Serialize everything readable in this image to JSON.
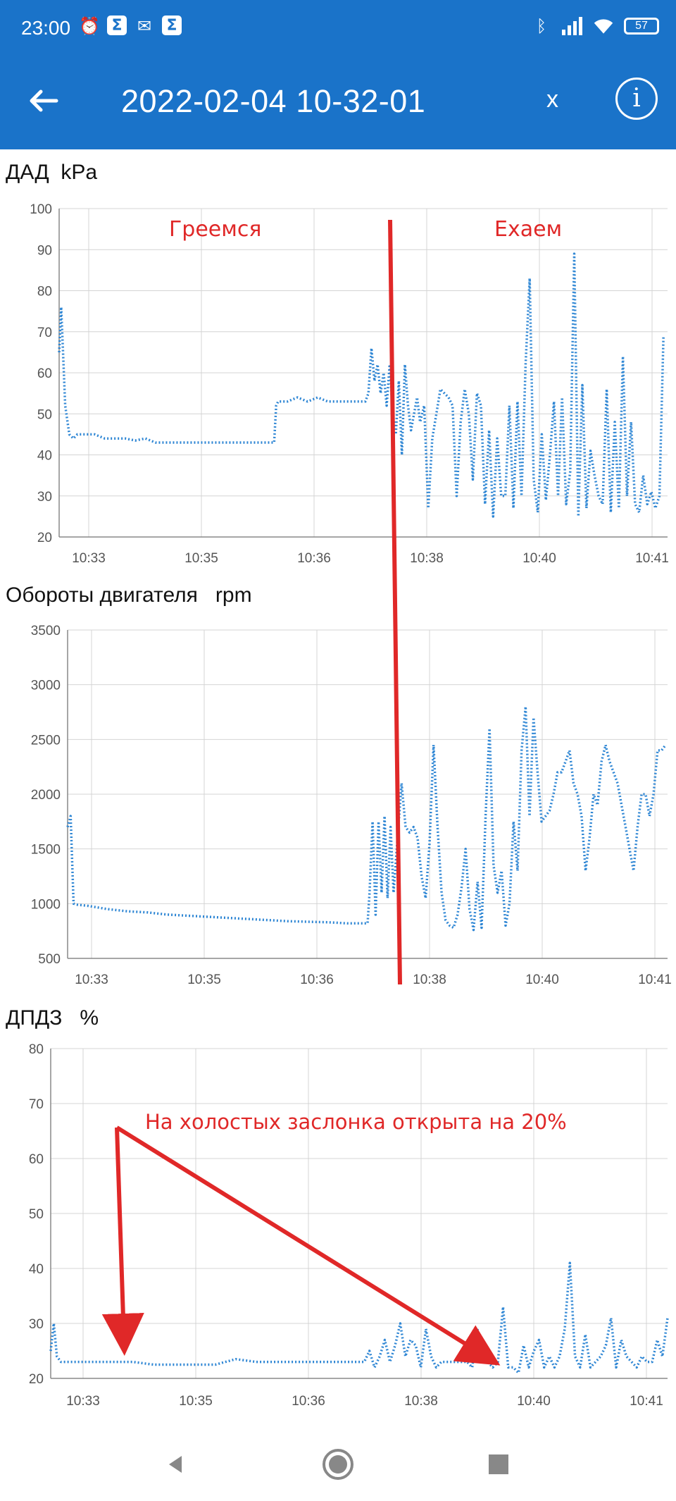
{
  "status_bar": {
    "time": "23:00",
    "left_icons": [
      "alarm-icon",
      "sigma-icon",
      "gmail-icon",
      "sigma-icon"
    ],
    "right_icons": [
      "bluetooth-icon",
      "signal-icon",
      "wifi-icon"
    ],
    "battery": "57"
  },
  "app_bar": {
    "back_icon": "arrow-back-icon",
    "title": "2022-02-04 10-32-01",
    "close_label": "x",
    "info_label": "i"
  },
  "colors": {
    "primary": "#1a73c9",
    "series": "#2e86d4",
    "annotation": "#e02828",
    "grid": "#d4d4d4"
  },
  "annotations": {
    "warming": "Греемся",
    "driving": "Ехаем",
    "idle_note": "На холостых заслонка открыта на 20%"
  },
  "nav_bar": {
    "items": [
      "back-triangle-icon",
      "home-circle-icon",
      "recents-square-icon"
    ]
  },
  "chart_data": [
    {
      "type": "line",
      "title": "ДАД",
      "unit": "kPa",
      "x_tick_labels": [
        "10:33",
        "10:35",
        "10:36",
        "10:38",
        "10:40",
        "10:41"
      ],
      "ylim": [
        20,
        100
      ],
      "yticks": [
        20,
        30,
        40,
        50,
        60,
        70,
        80,
        90,
        100
      ],
      "grid": true,
      "style": "dotted",
      "series": [
        {
          "x": [
            0.0,
            0.02,
            0.06,
            0.1,
            0.14,
            0.18,
            0.25,
            0.35,
            0.45,
            0.55,
            0.65,
            0.75,
            0.85,
            0.95,
            1.05,
            1.15,
            1.25,
            1.35,
            1.45,
            1.55,
            1.65,
            1.75,
            1.85,
            1.95,
            2.05,
            2.12,
            2.14,
            2.16,
            2.25,
            2.35,
            2.45,
            2.55,
            2.65,
            2.75,
            2.85,
            2.95,
            2.99,
            3.02,
            3.05,
            3.08,
            3.11,
            3.14,
            3.17,
            3.2,
            3.23,
            3.26,
            3.29,
            3.32,
            3.35,
            3.38,
            3.41,
            3.44,
            3.47,
            3.5,
            3.53,
            3.56,
            3.6,
            3.64,
            3.68,
            3.72,
            3.76,
            3.8,
            3.84,
            3.88,
            3.92,
            3.96,
            4.0,
            4.04,
            4.08,
            4.12,
            4.16,
            4.2,
            4.24,
            4.28,
            4.32,
            4.36,
            4.4,
            4.44,
            4.48,
            4.52,
            4.56,
            4.6,
            4.64,
            4.68,
            4.72,
            4.76,
            4.8,
            4.84,
            4.88,
            4.92,
            4.96,
            5.0,
            5.04,
            5.08,
            5.12,
            5.16,
            5.2,
            5.24,
            5.28,
            5.32,
            5.36,
            5.4,
            5.44,
            5.48,
            5.52,
            5.56,
            5.6,
            5.64,
            5.68,
            5.72,
            5.76,
            5.8,
            5.84,
            5.88,
            5.92,
            5.96
          ],
          "y": [
            65,
            76,
            52,
            45,
            44,
            45,
            45,
            45,
            44,
            44,
            44,
            43.5,
            44,
            43,
            43,
            43,
            43,
            43,
            43,
            43,
            43,
            43,
            43,
            43,
            43,
            43,
            52,
            53,
            53,
            54,
            53,
            54,
            53,
            53,
            53,
            53,
            53,
            53,
            55,
            66,
            58,
            62,
            55,
            60,
            52,
            62,
            50,
            45,
            58,
            40,
            62,
            52,
            46,
            50,
            54,
            48,
            52,
            27,
            44,
            50,
            56,
            55,
            54,
            52,
            30,
            48,
            56,
            50,
            34,
            55,
            52,
            28,
            46,
            25,
            44,
            30,
            30,
            52,
            27,
            53,
            30,
            62,
            83,
            34,
            26,
            45,
            29,
            40,
            53,
            30,
            54,
            28,
            36,
            89,
            25,
            57,
            27,
            41,
            35,
            30,
            28,
            56,
            26,
            48,
            27,
            64,
            30,
            48,
            28,
            26,
            35,
            28,
            31,
            27,
            30,
            69
          ]
        }
      ]
    },
    {
      "type": "line",
      "title": "Обороты двигателя",
      "unit": "rpm",
      "x_tick_labels": [
        "10:33",
        "10:35",
        "10:36",
        "10:38",
        "10:40",
        "10:41"
      ],
      "ylim": [
        500,
        3500
      ],
      "yticks": [
        500,
        1000,
        1500,
        2000,
        2500,
        3000,
        3500
      ],
      "grid": true,
      "style": "dotted",
      "series": [
        {
          "x": [
            0.0,
            0.03,
            0.06,
            0.1,
            0.2,
            0.4,
            0.6,
            0.8,
            1.0,
            1.2,
            1.4,
            1.6,
            1.8,
            2.0,
            2.2,
            2.4,
            2.6,
            2.8,
            3.0,
            3.02,
            3.05,
            3.08,
            3.11,
            3.14,
            3.17,
            3.2,
            3.23,
            3.26,
            3.3,
            3.34,
            3.38,
            3.42,
            3.46,
            3.5,
            3.54,
            3.58,
            3.62,
            3.66,
            3.7,
            3.74,
            3.78,
            3.82,
            3.86,
            3.9,
            3.94,
            3.98,
            4.02,
            4.06,
            4.1,
            4.14,
            4.18,
            4.22,
            4.26,
            4.3,
            4.34,
            4.38,
            4.42,
            4.46,
            4.5,
            4.54,
            4.58,
            4.62,
            4.66,
            4.7,
            4.74,
            4.78,
            4.82,
            4.86,
            4.9,
            4.94,
            4.98,
            5.02,
            5.06,
            5.1,
            5.14,
            5.18,
            5.22,
            5.26,
            5.3,
            5.34,
            5.38,
            5.42,
            5.46,
            5.5,
            5.54,
            5.58,
            5.62,
            5.66,
            5.7,
            5.74,
            5.78,
            5.82,
            5.86,
            5.9,
            5.94,
            5.98
          ],
          "y": [
            1700,
            1800,
            1000,
            990,
            980,
            950,
            930,
            920,
            900,
            890,
            880,
            870,
            860,
            850,
            840,
            835,
            830,
            820,
            820,
            1100,
            1750,
            900,
            1750,
            1100,
            1800,
            1050,
            1700,
            1100,
            1600,
            2100,
            1700,
            1650,
            1700,
            1600,
            1250,
            1050,
            1550,
            2450,
            1700,
            1100,
            850,
            800,
            780,
            900,
            1150,
            1500,
            950,
            760,
            1200,
            780,
            1800,
            2600,
            1350,
            1100,
            1300,
            800,
            1000,
            1750,
            1300,
            2400,
            2800,
            1800,
            2700,
            2200,
            1750,
            1800,
            1850,
            2000,
            2200,
            2200,
            2300,
            2400,
            2100,
            2000,
            1800,
            1300,
            1600,
            2000,
            1900,
            2300,
            2450,
            2300,
            2200,
            2100,
            1900,
            1700,
            1500,
            1300,
            1700,
            2000,
            2000,
            1800,
            2000,
            2400,
            2400,
            2450
          ]
        }
      ]
    },
    {
      "type": "line",
      "title": "ДПДЗ",
      "unit": "%",
      "x_tick_labels": [
        "10:33",
        "10:35",
        "10:36",
        "10:38",
        "10:40",
        "10:41"
      ],
      "ylim": [
        20,
        80
      ],
      "yticks": [
        20,
        30,
        40,
        50,
        60,
        70,
        80
      ],
      "grid": true,
      "style": "dotted",
      "series": [
        {
          "x": [
            0.0,
            0.03,
            0.06,
            0.1,
            0.2,
            0.4,
            0.6,
            0.8,
            1.0,
            1.2,
            1.4,
            1.6,
            1.8,
            2.0,
            2.2,
            2.4,
            2.6,
            2.8,
            3.0,
            3.05,
            3.1,
            3.15,
            3.2,
            3.25,
            3.3,
            3.35,
            3.4,
            3.45,
            3.5,
            3.55,
            3.6,
            3.65,
            3.7,
            3.75,
            3.8,
            3.85,
            3.9,
            3.95,
            4.0,
            4.05,
            4.1,
            4.15,
            4.2,
            4.25,
            4.3,
            4.35,
            4.4,
            4.45,
            4.5,
            4.55,
            4.6,
            4.65,
            4.7,
            4.75,
            4.8,
            4.85,
            4.9,
            4.95,
            5.0,
            5.05,
            5.1,
            5.15,
            5.2,
            5.25,
            5.3,
            5.35,
            5.4,
            5.45,
            5.5,
            5.55,
            5.6,
            5.65,
            5.7,
            5.75,
            5.8,
            5.85,
            5.9,
            5.95,
            6.0
          ],
          "y": [
            25,
            30,
            24,
            23,
            23,
            23,
            23,
            23,
            22.5,
            22.5,
            22.5,
            22.5,
            23.5,
            23,
            23,
            23,
            23,
            23,
            23,
            23,
            25,
            22,
            24,
            27,
            23,
            26,
            30,
            24,
            27,
            26,
            22,
            29,
            24,
            22,
            23,
            23,
            23,
            23,
            23,
            23,
            22,
            29,
            23,
            23,
            22,
            23,
            33,
            22,
            22,
            21,
            26,
            22,
            25,
            27,
            22,
            24,
            22,
            24,
            29,
            41,
            24,
            22,
            28,
            22,
            23,
            24,
            26,
            31,
            22,
            27,
            24,
            23,
            22,
            24,
            23,
            23,
            27,
            24,
            31
          ]
        }
      ]
    }
  ]
}
